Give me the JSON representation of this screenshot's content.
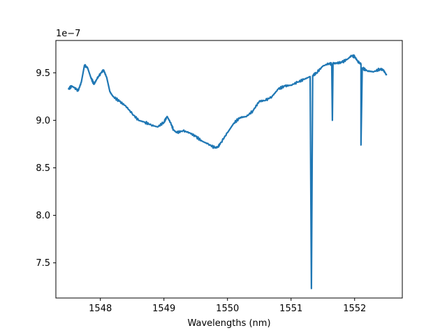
{
  "chart_data": {
    "type": "line",
    "title": "",
    "xlabel": "Wavelengths (nm)",
    "ylabel": "",
    "y_offset_text": "1e−7",
    "xlim": [
      1547.3,
      1552.75
    ],
    "ylim": [
      7.13,
      9.84
    ],
    "x_ticks": [
      1548,
      1549,
      1550,
      1551,
      1552
    ],
    "x_tick_labels": [
      "1548",
      "1549",
      "1550",
      "1551",
      "1552"
    ],
    "y_ticks": [
      7.5,
      8.0,
      8.5,
      9.0,
      9.5
    ],
    "y_tick_labels": [
      "7.5",
      "8.0",
      "8.5",
      "9.0",
      "9.5"
    ],
    "grid": false,
    "legend": "none",
    "colors": {
      "line": "#1f77b4",
      "axes": "#000000",
      "background": "#ffffff"
    },
    "series": [
      {
        "points": [
          [
            1547.5,
            9.33
          ],
          [
            1547.55,
            9.36
          ],
          [
            1547.6,
            9.34
          ],
          [
            1547.65,
            9.31
          ],
          [
            1547.7,
            9.4
          ],
          [
            1547.75,
            9.58
          ],
          [
            1547.8,
            9.55
          ],
          [
            1547.85,
            9.45
          ],
          [
            1547.9,
            9.38
          ],
          [
            1547.95,
            9.44
          ],
          [
            1548.0,
            9.49
          ],
          [
            1548.05,
            9.53
          ],
          [
            1548.1,
            9.45
          ],
          [
            1548.15,
            9.3
          ],
          [
            1548.2,
            9.25
          ],
          [
            1548.3,
            9.2
          ],
          [
            1548.4,
            9.15
          ],
          [
            1548.5,
            9.07
          ],
          [
            1548.6,
            9.0
          ],
          [
            1548.7,
            8.98
          ],
          [
            1548.8,
            8.95
          ],
          [
            1548.9,
            8.93
          ],
          [
            1549.0,
            8.98
          ],
          [
            1549.05,
            9.04
          ],
          [
            1549.1,
            8.98
          ],
          [
            1549.15,
            8.9
          ],
          [
            1549.2,
            8.87
          ],
          [
            1549.3,
            8.89
          ],
          [
            1549.4,
            8.87
          ],
          [
            1549.5,
            8.83
          ],
          [
            1549.6,
            8.78
          ],
          [
            1549.7,
            8.75
          ],
          [
            1549.8,
            8.71
          ],
          [
            1549.85,
            8.72
          ],
          [
            1549.9,
            8.77
          ],
          [
            1550.0,
            8.87
          ],
          [
            1550.1,
            8.97
          ],
          [
            1550.2,
            9.03
          ],
          [
            1550.3,
            9.04
          ],
          [
            1550.4,
            9.1
          ],
          [
            1550.5,
            9.2
          ],
          [
            1550.6,
            9.21
          ],
          [
            1550.7,
            9.25
          ],
          [
            1550.8,
            9.33
          ],
          [
            1550.9,
            9.36
          ],
          [
            1551.0,
            9.37
          ],
          [
            1551.1,
            9.4
          ],
          [
            1551.2,
            9.43
          ],
          [
            1551.3,
            9.46
          ],
          [
            1551.32,
            7.23
          ],
          [
            1551.34,
            9.47
          ],
          [
            1551.4,
            9.5
          ],
          [
            1551.5,
            9.57
          ],
          [
            1551.6,
            9.6
          ],
          [
            1551.64,
            9.59
          ],
          [
            1551.65,
            9.0
          ],
          [
            1551.66,
            9.6
          ],
          [
            1551.7,
            9.6
          ],
          [
            1551.8,
            9.61
          ],
          [
            1551.9,
            9.65
          ],
          [
            1551.95,
            9.68
          ],
          [
            1552.0,
            9.67
          ],
          [
            1552.05,
            9.62
          ],
          [
            1552.1,
            9.59
          ],
          [
            1552.1,
            8.74
          ],
          [
            1552.12,
            9.55
          ],
          [
            1552.2,
            9.52
          ],
          [
            1552.3,
            9.51
          ],
          [
            1552.4,
            9.54
          ],
          [
            1552.45,
            9.53
          ],
          [
            1552.5,
            9.48
          ]
        ]
      }
    ]
  }
}
